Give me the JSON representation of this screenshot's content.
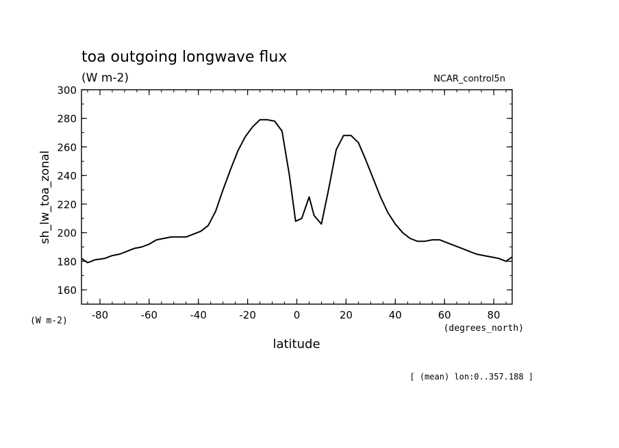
{
  "chart_data": {
    "type": "line",
    "title": "toa outgoing longwave flux",
    "subtitle": "(W m-2)",
    "dataset_label": "NCAR_control5n",
    "xlabel": "latitude",
    "x_units": "(degrees_north)",
    "ylabel": "sh_lw_toa_zonal",
    "y_units": "(W m-2)",
    "footer": "[ (mean) lon:0..357.188 ]",
    "xlim": [
      -87.5,
      87.5
    ],
    "ylim": [
      150,
      300
    ],
    "xticks": [
      -80,
      -60,
      -40,
      -20,
      0,
      20,
      40,
      60,
      80
    ],
    "xtick_labels": [
      "-80",
      "-60",
      "-40",
      "-20",
      "0",
      "20",
      "40",
      "60",
      "80"
    ],
    "yticks": [
      160,
      180,
      200,
      220,
      240,
      260,
      280,
      300
    ],
    "ytick_labels": [
      "160",
      "180",
      "200",
      "220",
      "240",
      "260",
      "280",
      "300"
    ],
    "series": [
      {
        "x": [
          -87.5,
          -85,
          -82,
          -78,
          -75,
          -72,
          -69,
          -66,
          -63,
          -60,
          -57,
          -54,
          -51,
          -48,
          -45,
          -42,
          -39,
          -36,
          -33,
          -30,
          -27,
          -24,
          -21,
          -18,
          -15,
          -12,
          -9,
          -6,
          -3,
          -0.5,
          2,
          5,
          7,
          10,
          13,
          16,
          19,
          22,
          25,
          28,
          31,
          34,
          37,
          40,
          43,
          46,
          49,
          52,
          55,
          58,
          61,
          64,
          67,
          70,
          73,
          76,
          79,
          82,
          85,
          87.5
        ],
        "y": [
          182,
          179,
          181,
          182,
          184,
          185,
          187,
          189,
          190,
          192,
          195,
          196,
          197,
          197,
          197,
          199,
          201,
          205,
          215,
          230,
          244,
          257,
          267,
          274,
          279,
          279,
          278,
          271,
          240,
          208,
          210,
          225,
          212,
          206,
          231,
          258,
          268,
          268,
          263,
          251,
          238,
          225,
          214,
          206,
          200,
          196,
          194,
          194,
          195,
          195,
          193,
          191,
          189,
          187,
          185,
          184,
          183,
          182,
          180,
          183
        ]
      }
    ],
    "grid": false,
    "legend": false
  }
}
